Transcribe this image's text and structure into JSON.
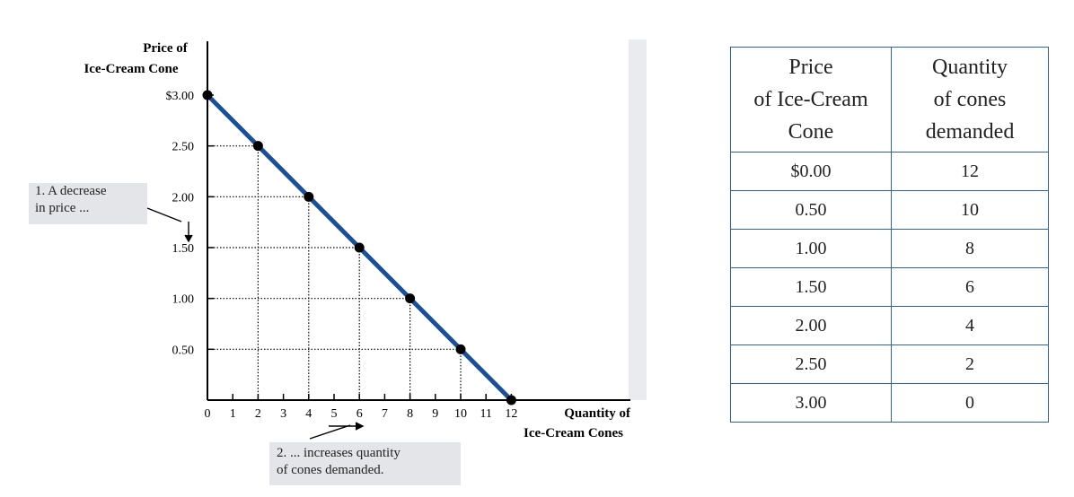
{
  "chart_data": {
    "type": "line",
    "y_axis_title": [
      "Price of",
      "Ice-Cream Cone"
    ],
    "x_axis_title": [
      "Quantity of",
      "Ice-Cream Cones"
    ],
    "y_ticks": [
      "$3.00",
      "2.50",
      "2.00",
      "1.50",
      "1.00",
      "0.50"
    ],
    "y_tick_values": [
      3.0,
      2.5,
      2.0,
      1.5,
      1.0,
      0.5
    ],
    "x_ticks": [
      "0",
      "1",
      "2",
      "3",
      "4",
      "5",
      "6",
      "7",
      "8",
      "9",
      "10",
      "11",
      "12"
    ],
    "xlim": [
      0,
      12
    ],
    "ylim": [
      0,
      3
    ],
    "series": [
      {
        "points": [
          {
            "x": 0,
            "y": 3.0
          },
          {
            "x": 2,
            "y": 2.5
          },
          {
            "x": 4,
            "y": 2.0
          },
          {
            "x": 6,
            "y": 1.5
          },
          {
            "x": 8,
            "y": 1.0
          },
          {
            "x": 10,
            "y": 0.5
          },
          {
            "x": 12,
            "y": 0.0
          }
        ],
        "color": "#1a4f9c"
      }
    ],
    "gridlines": "dotted to points"
  },
  "callouts": {
    "price_decrease": [
      "1. A decrease",
      "in price ..."
    ],
    "quantity_increase": [
      "2. ...  increases quantity",
      "of cones demanded."
    ]
  },
  "schedule": {
    "headers": [
      [
        "Price",
        "of Ice-Cream",
        "Cone"
      ],
      [
        "Quantity",
        "of cones",
        "demanded"
      ]
    ],
    "rows": [
      [
        "$0.00",
        "12"
      ],
      [
        "0.50",
        "10"
      ],
      [
        "1.00",
        "8"
      ],
      [
        "1.50",
        "6"
      ],
      [
        "2.00",
        "4"
      ],
      [
        "2.50",
        "2"
      ],
      [
        "3.00",
        "0"
      ]
    ],
    "border_color": "#2e64a4"
  }
}
